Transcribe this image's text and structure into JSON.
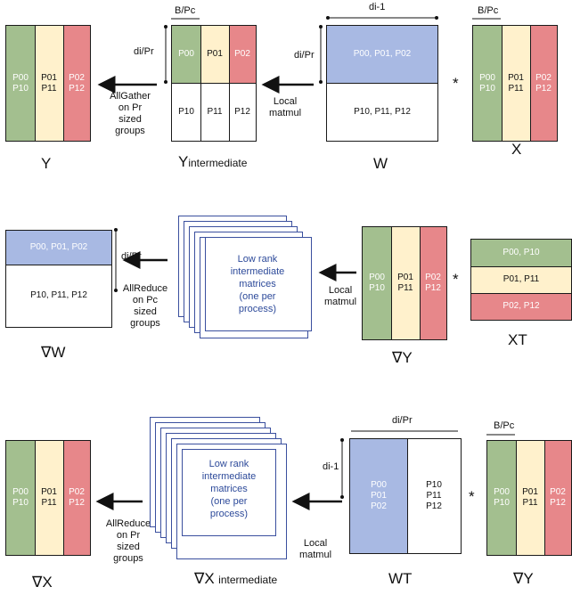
{
  "row1": {
    "Y": {
      "c1": "P00\nP10",
      "c2": "P01\nP11",
      "c3": "P02\nP12",
      "label": "Y"
    },
    "op1": "AllGather\non Pr\nsized\ngroups",
    "Yint": {
      "top1": "P00",
      "top2": "P01",
      "top3": "P02",
      "bot1": "P10",
      "bot2": "P11",
      "bot3": "P12",
      "label_main": "Y",
      "label_sub": "intermediate",
      "dim_top": "B/Pc",
      "dim_side": "di/Pr"
    },
    "op2": "Local\nmatmul",
    "W": {
      "top": "P00, P01, P02",
      "bottom": "P10, P11, P12",
      "label": "W",
      "dim_top": "di-1",
      "dim_side": "di/Pr"
    },
    "mult": "*",
    "X": {
      "c1": "P00\nP10",
      "c2": "P01\nP11",
      "c3": "P02\nP12",
      "label": "X",
      "dim_top": "B/Pc"
    }
  },
  "row2": {
    "gW": {
      "top": "P00, P01, P02",
      "bottom": "P10, P11, P12",
      "label": "∇W",
      "dim_side": "di/Pr"
    },
    "op1": "AllReduce\non Pc\nsized\ngroups",
    "stack_text": "Low rank\nintermediate\nmatrices\n(one per\nprocess)",
    "op2": "Local\nmatmul",
    "gY": {
      "c1": "P00\nP10",
      "c2": "P01\nP11",
      "c3": "P02\nP12",
      "label": "∇Y"
    },
    "mult": "*",
    "XT": {
      "r1": "P00, P10",
      "r2": "P01, P11",
      "r3": "P02, P12",
      "label": "XT"
    }
  },
  "row3": {
    "gX": {
      "c1": "P00\nP10",
      "c2": "P01\nP11",
      "c3": "P02\nP12",
      "label": "∇X"
    },
    "op1": "AllReduce\non Pr\nsized\ngroups",
    "stack_text": "Low rank\nintermediate\nmatrices\n(one per\nprocess)",
    "stack_label_main": "∇X",
    "stack_label_sub": "intermediate",
    "op2": "Local\nmatmul",
    "WT": {
      "left": "P00\nP01\nP02",
      "right": "P10\nP11\nP12",
      "label": "WT",
      "dim_top": "di/Pr",
      "dim_side": "di-1"
    },
    "mult": "*",
    "gY": {
      "c1": "P00\nP10",
      "c2": "P01\nP11",
      "c3": "P02\nP12",
      "label": "∇Y",
      "dim_top": "B/Pc"
    }
  },
  "colors": {
    "green": "#a3bf8f",
    "yellow": "#fff1cc",
    "red": "#e7878a",
    "blue": "#a8b9e3",
    "stack_border": "#3a4f9e"
  }
}
